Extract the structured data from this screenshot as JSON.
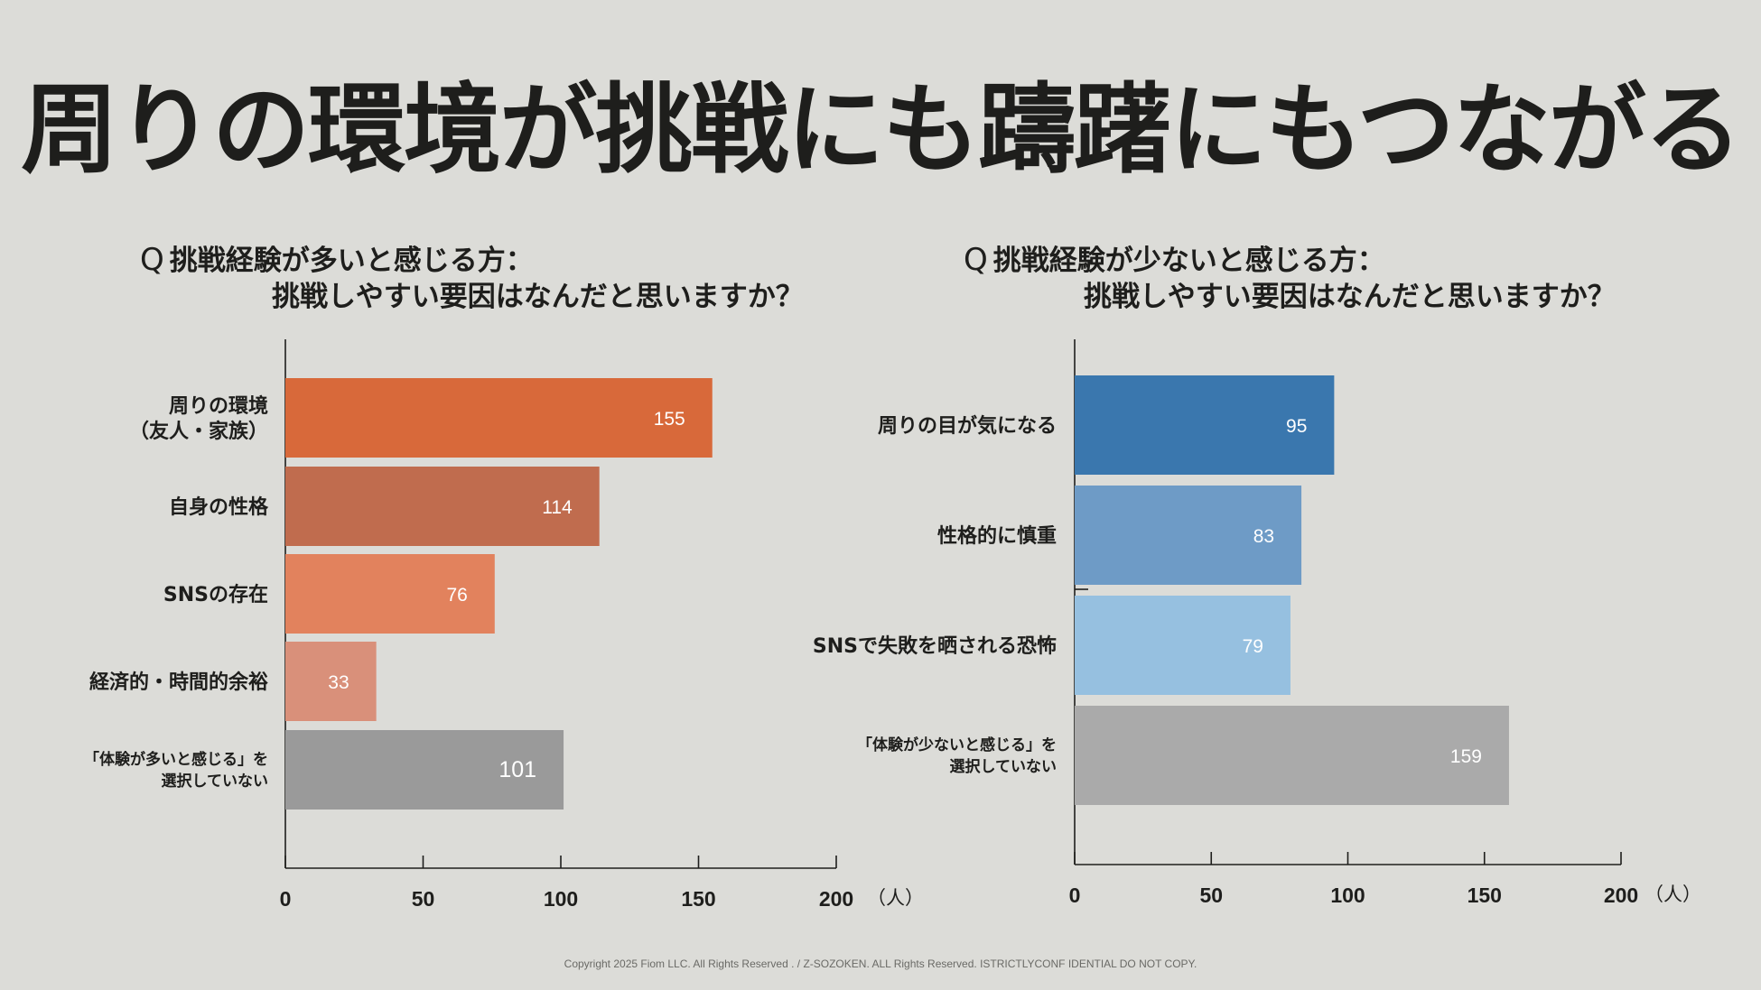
{
  "title": "周りの環境が挑戦にも躊躇にもつながる",
  "footer": "Copyright 2025 Fiom LLC. All Rights Reserved . / Z-SOZOKEN. ALL Rights Reserved. ISTRICTLYCONF IDENTIAL DO NOT COPY.",
  "chart_data": [
    {
      "type": "bar",
      "orientation": "horizontal",
      "title_prefix": "Q",
      "title_line1": "挑戦経験が多いと感じる方：",
      "title_line2": "挑戦しやすい要因はなんだと思いますか？",
      "categories": [
        [
          "周りの環境",
          "（友人・家族）"
        ],
        [
          "自身の性格"
        ],
        [
          "SNSの存在"
        ],
        [
          "経済的・時間的余裕"
        ],
        [
          "「体験が多いと感じる」を",
          "選択していない"
        ]
      ],
      "values": [
        155,
        114,
        76,
        33,
        101
      ],
      "colors": [
        "#d8693a",
        "#c06c4e",
        "#e2825d",
        "#d9907a",
        "#9a9a9a"
      ],
      "xlim": [
        0,
        200
      ],
      "xticks": [
        0,
        50,
        100,
        150,
        200
      ],
      "xticklabels": [
        "0",
        "50",
        "100",
        "150",
        "200"
      ],
      "unit": "（人）",
      "grid": false,
      "legend": false
    },
    {
      "type": "bar",
      "orientation": "horizontal",
      "title_prefix": "Q",
      "title_line1": "挑戦経験が少ないと感じる方：",
      "title_line2": "挑戦しやすい要因はなんだと思いますか？",
      "categories": [
        [
          "周りの目が気になる"
        ],
        [
          "性格的に慎重"
        ],
        [
          "SNSで失敗を晒される恐怖"
        ],
        [
          "「体験が少ないと感じる」を",
          "選択していない"
        ]
      ],
      "values": [
        95,
        83,
        79,
        159
      ],
      "colors": [
        "#3a77ae",
        "#6e9bc6",
        "#96c0e0",
        "#aaaaaa"
      ],
      "xlim": [
        0,
        200
      ],
      "xticks": [
        0,
        50,
        100,
        150,
        200
      ],
      "xticklabels": [
        "0",
        "50",
        "100",
        "150",
        "200"
      ],
      "unit": "（人）",
      "grid": false,
      "legend": false
    }
  ]
}
